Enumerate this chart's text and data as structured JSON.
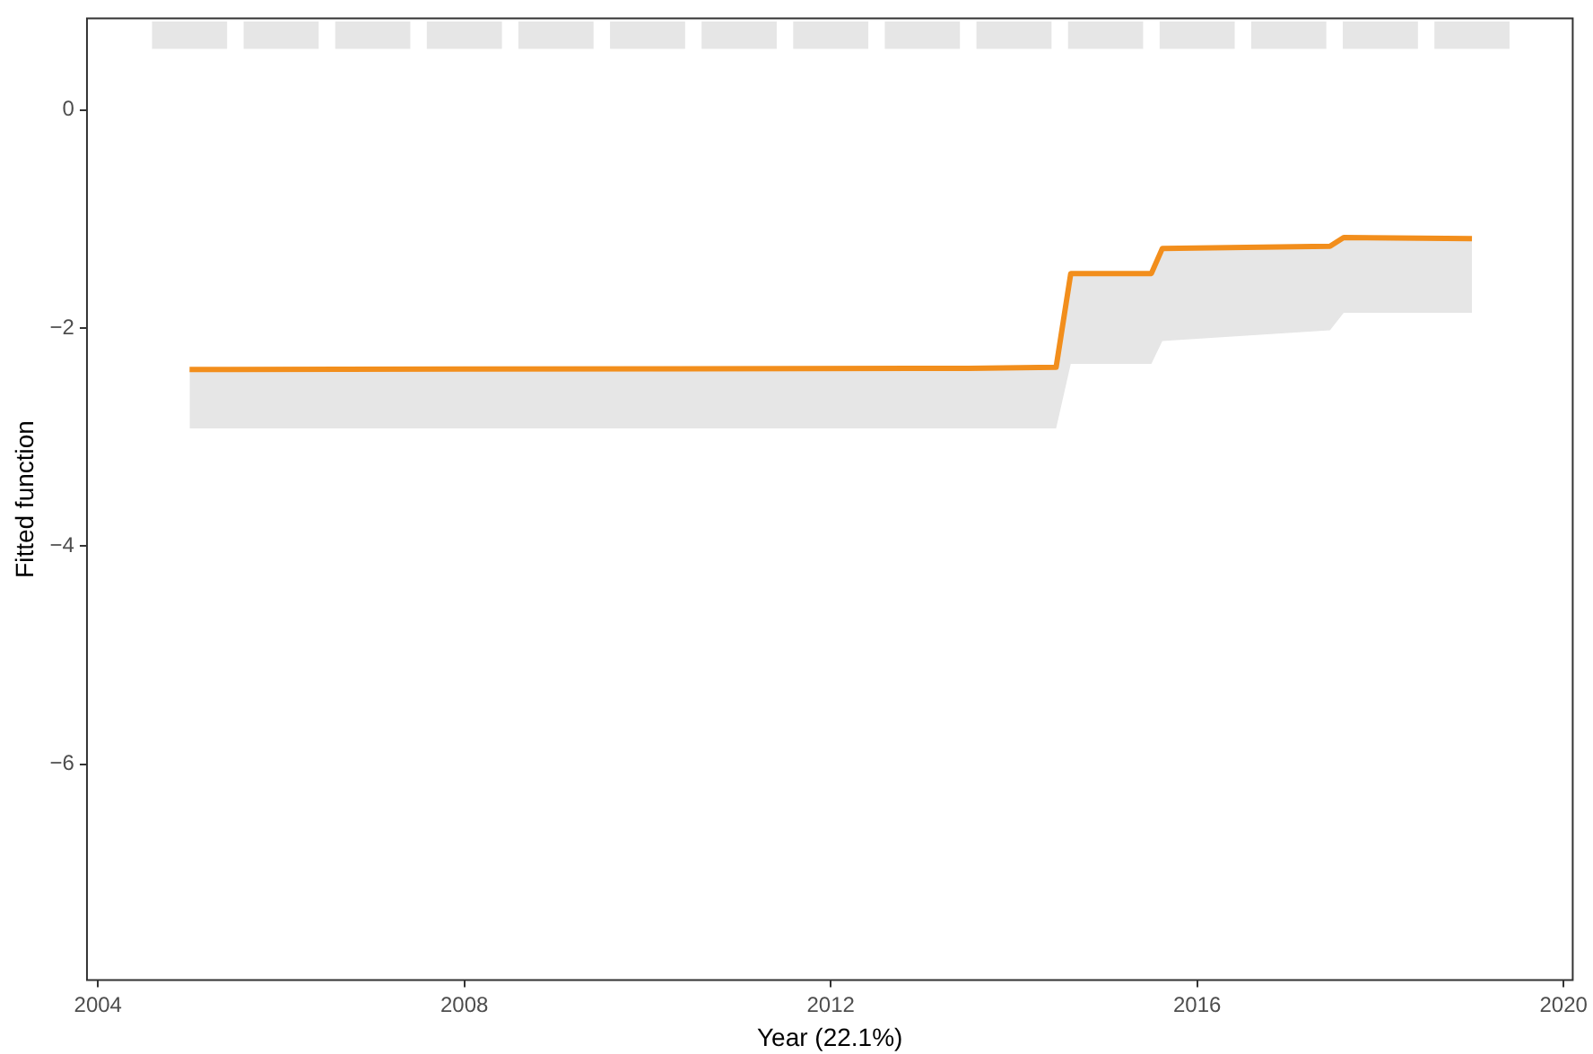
{
  "chart_data": {
    "type": "line",
    "xlabel": "Year (22.1%)",
    "ylabel": "Fitted function",
    "xlim": [
      2003.88,
      2020.1
    ],
    "xticks": [
      2004,
      2008,
      2012,
      2016,
      2020
    ],
    "ylim": [
      -7.98,
      0.84
    ],
    "yticks": [
      -6,
      -4,
      -2,
      0
    ],
    "grid": false,
    "legend": false,
    "marker": "none",
    "line_style": "solid",
    "series": [
      {
        "type": "bar",
        "color": "#e6e6e6",
        "x": [
          2005,
          2006,
          2007,
          2008,
          2009,
          2010,
          2011,
          2012,
          2013,
          2014,
          2015,
          2016,
          2017,
          2018,
          2019
        ],
        "base": [
          0.56,
          0.56,
          0.56,
          0.56,
          0.56,
          0.56,
          0.56,
          0.56,
          0.56,
          0.56,
          0.56,
          0.56,
          0.56,
          0.56,
          0.56
        ],
        "values": [
          0.25,
          0.25,
          0.25,
          0.25,
          0.25,
          0.25,
          0.25,
          0.25,
          0.25,
          0.25,
          0.25,
          0.25,
          0.25,
          0.25,
          0.25
        ]
      },
      {
        "color": "#f28e1c",
        "x": [
          2005,
          2013.5,
          2014.46,
          2014.62,
          2015.5,
          2015.62,
          2017.45,
          2017.6,
          2019.0
        ],
        "values": [
          -2.38,
          -2.37,
          -2.36,
          -1.5,
          -1.5,
          -1.27,
          -1.25,
          -1.17,
          -1.18
        ],
        "lower": [
          -2.92,
          -2.92,
          -2.92,
          -2.33,
          -2.33,
          -2.12,
          -2.02,
          -1.86,
          -1.86
        ],
        "upper": [
          -2.38,
          -2.37,
          -2.36,
          -1.5,
          -1.5,
          -1.27,
          -1.25,
          -1.17,
          -1.18
        ]
      }
    ]
  }
}
